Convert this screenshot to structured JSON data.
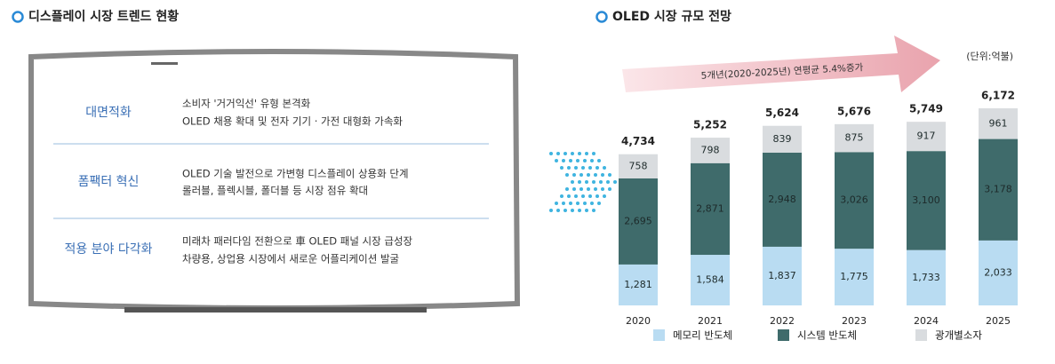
{
  "left_panel": {
    "title": "디스플레이 시장 트렌드 현황",
    "rows": [
      {
        "label": "대면적화",
        "lines": [
          "소비자 '거거익선' 유형 본격화",
          "OLED 채용 확대 및 전자 기기 · 가전 대형화 가속화"
        ]
      },
      {
        "label": "폼팩터 혁신",
        "lines": [
          "OLED 기술 발전으로 가변형 디스플레이 상용화 단계",
          "롤러블, 플렉시블, 폴더블 등 시장 점유 확대"
        ]
      },
      {
        "label": "적용 분야 다각화",
        "lines": [
          "미래차 패러다임 전환으로 車 OLED 패널 시장  급성장",
          "차량용, 상업용 시장에서 새로운 어플리케이션 발굴"
        ]
      }
    ]
  },
  "chart_data": {
    "type": "stacked-bar",
    "title": "OLED 시장 규모 전망",
    "unit": "(단위:억불)",
    "annotation": "5개년(2020-2025년)  연평균  5.4%증가",
    "categories": [
      "2020",
      "2021",
      "2022",
      "2023",
      "2024",
      "2025"
    ],
    "series": [
      {
        "name": "메모리 반도체",
        "color": "#b9dcf2",
        "values": [
          1281,
          1584,
          1837,
          1775,
          1733,
          2033
        ],
        "value_labels": [
          "1,281",
          "1,584",
          "1,837",
          "1,775",
          "1,733",
          "2,033"
        ]
      },
      {
        "name": "시스템 반도체",
        "color": "#3f6b6b",
        "values": [
          2695,
          2871,
          2948,
          3026,
          3100,
          3178
        ],
        "value_labels": [
          "2,695",
          "2,871",
          "2,948",
          "3,026",
          "3,100",
          "3,178"
        ]
      },
      {
        "name": "광개별소자",
        "color": "#d9dcdf",
        "values": [
          758,
          798,
          839,
          875,
          917,
          961
        ]
      }
    ],
    "totals": [
      4734,
      5252,
      5624,
      5676,
      5749,
      6172
    ],
    "total_labels": [
      "4,734",
      "5,252",
      "5,624",
      "5,676",
      "5,749",
      "6,172"
    ]
  }
}
